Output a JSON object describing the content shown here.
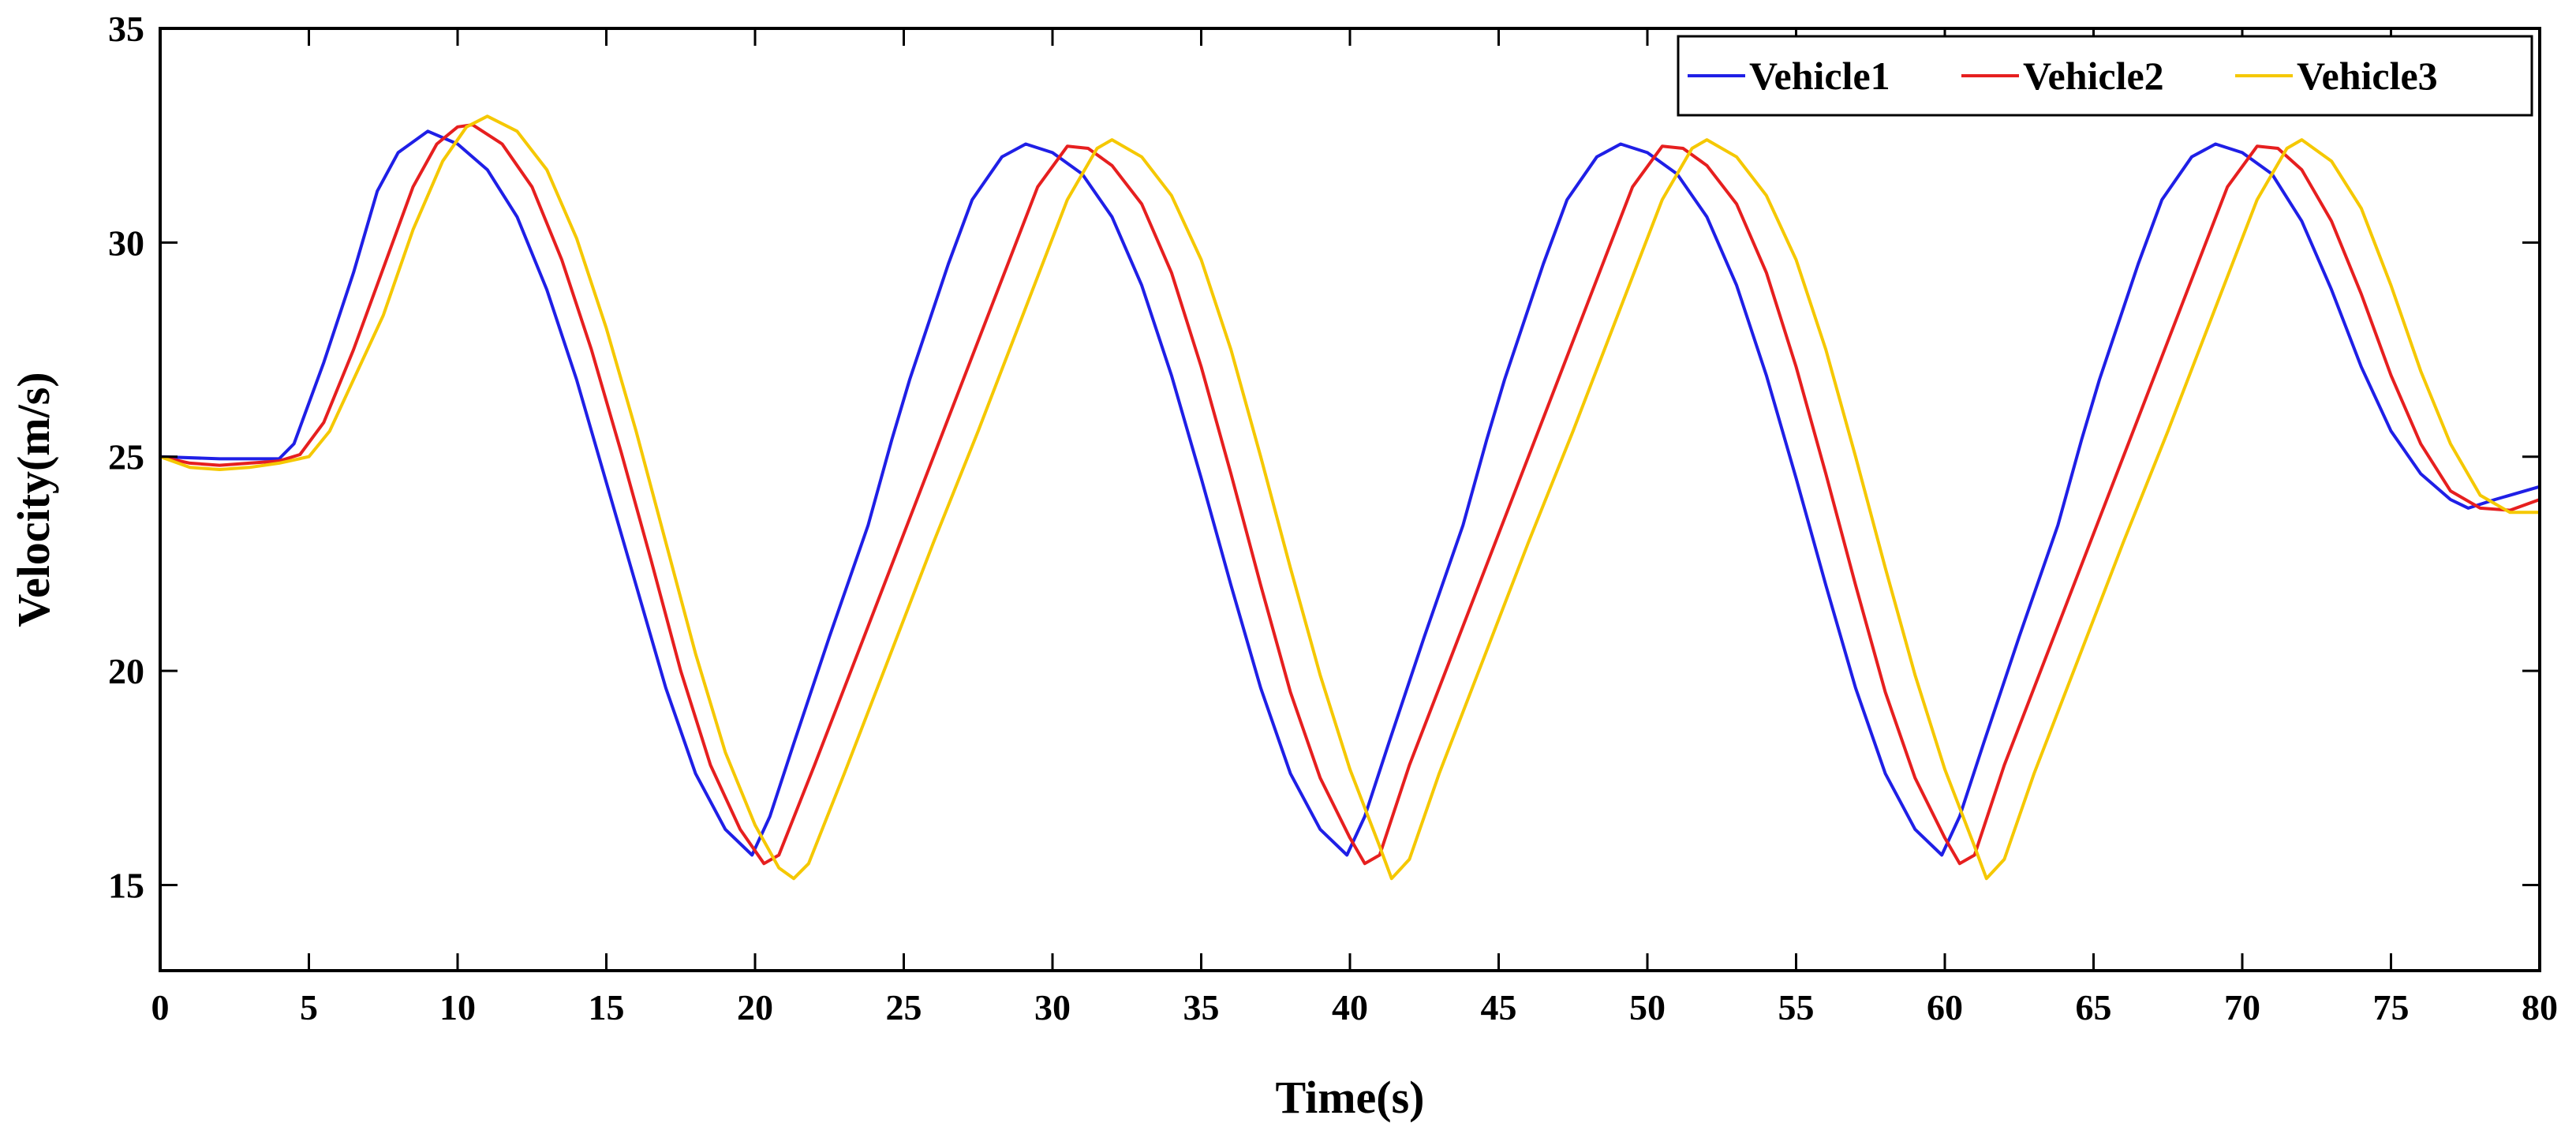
{
  "chart_data": {
    "type": "line",
    "title": "",
    "xlabel": "Time(s)",
    "ylabel": "Velocity(m/s)",
    "xlim": [
      0,
      80
    ],
    "ylim": [
      13,
      35
    ],
    "xticks": [
      0,
      5,
      10,
      15,
      20,
      25,
      30,
      35,
      40,
      45,
      50,
      55,
      60,
      65,
      70,
      75,
      80
    ],
    "yticks": [
      15,
      20,
      25,
      30,
      35
    ],
    "grid": false,
    "legend_position": "top-right",
    "series": [
      {
        "name": "Vehicle1",
        "color": "#1f1fe6",
        "points": [
          [
            0,
            25.0
          ],
          [
            2,
            24.95
          ],
          [
            4,
            24.95
          ],
          [
            4.5,
            25.3
          ],
          [
            5.5,
            27.2
          ],
          [
            6.5,
            29.3
          ],
          [
            7.3,
            31.2
          ],
          [
            8,
            32.1
          ],
          [
            9,
            32.6
          ],
          [
            10,
            32.3
          ],
          [
            11,
            31.7
          ],
          [
            12,
            30.6
          ],
          [
            13,
            28.9
          ],
          [
            14,
            26.8
          ],
          [
            15,
            24.4
          ],
          [
            16,
            22.0
          ],
          [
            17,
            19.6
          ],
          [
            18,
            17.6
          ],
          [
            19,
            16.3
          ],
          [
            19.9,
            15.7
          ],
          [
            20.5,
            16.6
          ],
          [
            21.3,
            18.3
          ],
          [
            22.5,
            20.8
          ],
          [
            23.8,
            23.4
          ],
          [
            24.6,
            25.4
          ],
          [
            25.2,
            26.8
          ],
          [
            26.5,
            29.5
          ],
          [
            27.3,
            31.0
          ],
          [
            28.3,
            32.0
          ],
          [
            29.1,
            32.3
          ],
          [
            30,
            32.1
          ],
          [
            31,
            31.6
          ],
          [
            32,
            30.6
          ],
          [
            33,
            29.0
          ],
          [
            34,
            26.9
          ],
          [
            35,
            24.5
          ],
          [
            36,
            22.0
          ],
          [
            37,
            19.6
          ],
          [
            38,
            17.6
          ],
          [
            39,
            16.3
          ],
          [
            39.9,
            15.7
          ],
          [
            40.5,
            16.6
          ],
          [
            41.3,
            18.3
          ],
          [
            42.5,
            20.8
          ],
          [
            43.8,
            23.4
          ],
          [
            44.6,
            25.4
          ],
          [
            45.2,
            26.8
          ],
          [
            46.5,
            29.5
          ],
          [
            47.3,
            31.0
          ],
          [
            48.3,
            32.0
          ],
          [
            49.1,
            32.3
          ],
          [
            50,
            32.1
          ],
          [
            51,
            31.6
          ],
          [
            52,
            30.6
          ],
          [
            53,
            29.0
          ],
          [
            54,
            26.9
          ],
          [
            55,
            24.5
          ],
          [
            56,
            22.0
          ],
          [
            57,
            19.6
          ],
          [
            58,
            17.6
          ],
          [
            59,
            16.3
          ],
          [
            59.9,
            15.7
          ],
          [
            60.5,
            16.6
          ],
          [
            61.3,
            18.3
          ],
          [
            62.5,
            20.8
          ],
          [
            63.8,
            23.4
          ],
          [
            64.6,
            25.4
          ],
          [
            65.2,
            26.8
          ],
          [
            66.5,
            29.5
          ],
          [
            67.3,
            31.0
          ],
          [
            68.3,
            32.0
          ],
          [
            69.1,
            32.3
          ],
          [
            70,
            32.1
          ],
          [
            71,
            31.6
          ],
          [
            72,
            30.5
          ],
          [
            73,
            28.9
          ],
          [
            74,
            27.1
          ],
          [
            75,
            25.6
          ],
          [
            76,
            24.6
          ],
          [
            77,
            24.0
          ],
          [
            77.6,
            23.8
          ],
          [
            78.5,
            24.0
          ],
          [
            80,
            24.3
          ]
        ]
      },
      {
        "name": "Vehicle2",
        "color": "#e61f1f",
        "points": [
          [
            0,
            25.0
          ],
          [
            1,
            24.85
          ],
          [
            2,
            24.8
          ],
          [
            3,
            24.85
          ],
          [
            4,
            24.9
          ],
          [
            4.7,
            25.05
          ],
          [
            5.5,
            25.8
          ],
          [
            6.5,
            27.5
          ],
          [
            7.5,
            29.4
          ],
          [
            8.5,
            31.3
          ],
          [
            9.3,
            32.3
          ],
          [
            10,
            32.7
          ],
          [
            10.5,
            32.75
          ],
          [
            11.5,
            32.3
          ],
          [
            12.5,
            31.3
          ],
          [
            13.5,
            29.6
          ],
          [
            14.5,
            27.5
          ],
          [
            15.5,
            25.1
          ],
          [
            16.5,
            22.6
          ],
          [
            17.5,
            20.0
          ],
          [
            18.5,
            17.8
          ],
          [
            19.5,
            16.3
          ],
          [
            20.3,
            15.5
          ],
          [
            20.8,
            15.7
          ],
          [
            22,
            17.8
          ],
          [
            23.5,
            20.5
          ],
          [
            25,
            23.2
          ],
          [
            26.5,
            25.9
          ],
          [
            28,
            28.6
          ],
          [
            29.5,
            31.3
          ],
          [
            30.5,
            32.25
          ],
          [
            31.2,
            32.2
          ],
          [
            32,
            31.8
          ],
          [
            33,
            30.9
          ],
          [
            34,
            29.3
          ],
          [
            35,
            27.1
          ],
          [
            36,
            24.6
          ],
          [
            37,
            22.0
          ],
          [
            38,
            19.5
          ],
          [
            39,
            17.5
          ],
          [
            40,
            16.1
          ],
          [
            40.5,
            15.5
          ],
          [
            41,
            15.7
          ],
          [
            42,
            17.8
          ],
          [
            43.5,
            20.5
          ],
          [
            45,
            23.2
          ],
          [
            46.5,
            25.9
          ],
          [
            48,
            28.6
          ],
          [
            49.5,
            31.3
          ],
          [
            50.5,
            32.25
          ],
          [
            51.2,
            32.2
          ],
          [
            52,
            31.8
          ],
          [
            53,
            30.9
          ],
          [
            54,
            29.3
          ],
          [
            55,
            27.1
          ],
          [
            56,
            24.6
          ],
          [
            57,
            22.0
          ],
          [
            58,
            19.5
          ],
          [
            59,
            17.5
          ],
          [
            60,
            16.1
          ],
          [
            60.5,
            15.5
          ],
          [
            61,
            15.7
          ],
          [
            62,
            17.8
          ],
          [
            63.5,
            20.5
          ],
          [
            65,
            23.2
          ],
          [
            66.5,
            25.9
          ],
          [
            68,
            28.6
          ],
          [
            69.5,
            31.3
          ],
          [
            70.5,
            32.25
          ],
          [
            71.2,
            32.2
          ],
          [
            72,
            31.7
          ],
          [
            73,
            30.5
          ],
          [
            74,
            28.8
          ],
          [
            75,
            26.9
          ],
          [
            76,
            25.3
          ],
          [
            77,
            24.2
          ],
          [
            78,
            23.8
          ],
          [
            79,
            23.75
          ],
          [
            80,
            24.0
          ]
        ]
      },
      {
        "name": "Vehicle3",
        "color": "#f5c800",
        "points": [
          [
            0,
            25.0
          ],
          [
            1,
            24.75
          ],
          [
            2,
            24.7
          ],
          [
            3,
            24.75
          ],
          [
            4,
            24.85
          ],
          [
            5,
            25.0
          ],
          [
            5.7,
            25.6
          ],
          [
            6.5,
            26.8
          ],
          [
            7.5,
            28.3
          ],
          [
            8.5,
            30.3
          ],
          [
            9.5,
            31.9
          ],
          [
            10.3,
            32.7
          ],
          [
            11,
            32.95
          ],
          [
            12,
            32.6
          ],
          [
            13,
            31.7
          ],
          [
            14,
            30.1
          ],
          [
            15,
            28.0
          ],
          [
            16,
            25.6
          ],
          [
            17,
            23.0
          ],
          [
            18,
            20.4
          ],
          [
            19,
            18.1
          ],
          [
            20,
            16.4
          ],
          [
            20.8,
            15.4
          ],
          [
            21.3,
            15.15
          ],
          [
            21.8,
            15.5
          ],
          [
            23,
            17.6
          ],
          [
            24.5,
            20.3
          ],
          [
            26,
            23.0
          ],
          [
            27.5,
            25.6
          ],
          [
            29,
            28.3
          ],
          [
            30.5,
            31.0
          ],
          [
            31.5,
            32.2
          ],
          [
            32,
            32.4
          ],
          [
            33,
            32.0
          ],
          [
            34,
            31.1
          ],
          [
            35,
            29.6
          ],
          [
            36,
            27.5
          ],
          [
            37,
            25.0
          ],
          [
            38,
            22.4
          ],
          [
            39,
            19.9
          ],
          [
            40,
            17.7
          ],
          [
            41,
            15.9
          ],
          [
            41.4,
            15.15
          ],
          [
            42,
            15.6
          ],
          [
            43,
            17.6
          ],
          [
            44.5,
            20.3
          ],
          [
            46,
            23.0
          ],
          [
            47.5,
            25.6
          ],
          [
            49,
            28.3
          ],
          [
            50.5,
            31.0
          ],
          [
            51.5,
            32.2
          ],
          [
            52,
            32.4
          ],
          [
            53,
            32.0
          ],
          [
            54,
            31.1
          ],
          [
            55,
            29.6
          ],
          [
            56,
            27.5
          ],
          [
            57,
            25.0
          ],
          [
            58,
            22.4
          ],
          [
            59,
            19.9
          ],
          [
            60,
            17.7
          ],
          [
            61,
            15.9
          ],
          [
            61.4,
            15.15
          ],
          [
            62,
            15.6
          ],
          [
            63,
            17.6
          ],
          [
            64.5,
            20.3
          ],
          [
            66,
            23.0
          ],
          [
            67.5,
            25.6
          ],
          [
            69,
            28.3
          ],
          [
            70.5,
            31.0
          ],
          [
            71.5,
            32.2
          ],
          [
            72,
            32.4
          ],
          [
            73,
            31.9
          ],
          [
            74,
            30.8
          ],
          [
            75,
            29.0
          ],
          [
            76,
            27.0
          ],
          [
            77,
            25.3
          ],
          [
            78,
            24.1
          ],
          [
            79,
            23.7
          ],
          [
            80,
            23.7
          ]
        ]
      }
    ]
  }
}
